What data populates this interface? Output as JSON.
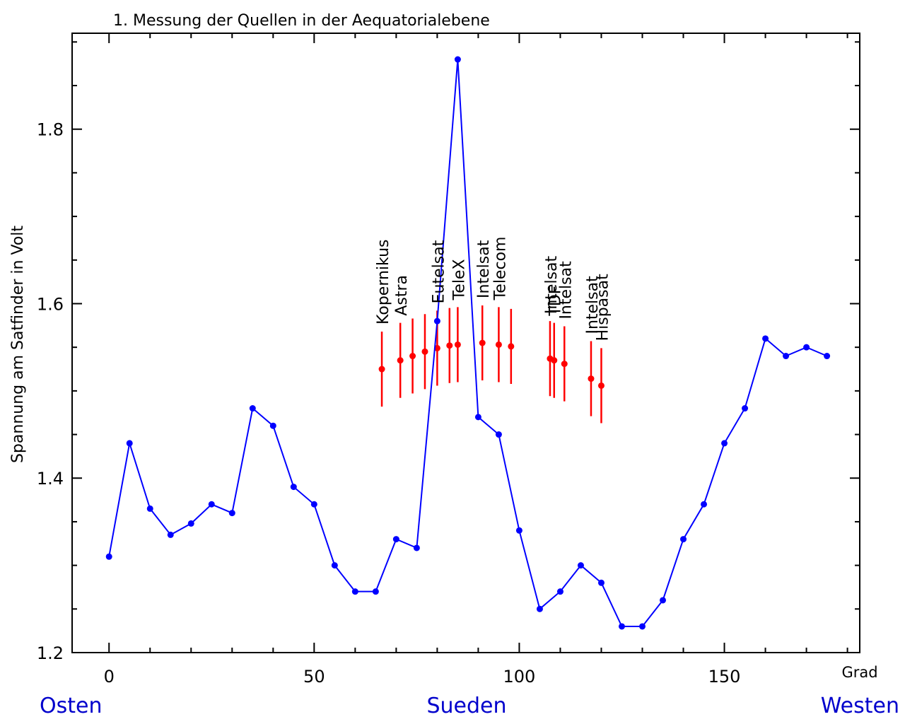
{
  "chart_data": {
    "type": "line",
    "title": "1. Messung der Quellen in der Aequatorialebene",
    "ylabel": "Spannung am Satfinder in Volt",
    "xunit": "Grad",
    "direction_labels": [
      "Osten",
      "Sueden",
      "Westen"
    ],
    "xlim": [
      -9,
      183
    ],
    "ylim": [
      1.2,
      1.91
    ],
    "xticks": [
      0,
      50,
      100,
      150
    ],
    "yticks": [
      1.2,
      1.4,
      1.6,
      1.8
    ],
    "grid": false,
    "colors": {
      "measurement": "#0000ff",
      "satellites": "#ff0000",
      "direction_labels": "#0000cc"
    },
    "series": [
      {
        "x": [
          0,
          5,
          10,
          15,
          20,
          25,
          30,
          35,
          40,
          45,
          50,
          55,
          60,
          65,
          70,
          75,
          80,
          85,
          90,
          95,
          100,
          105,
          110,
          115,
          120,
          125,
          130,
          135,
          140,
          145,
          150,
          155,
          160,
          165,
          170,
          175
        ],
        "y": [
          1.31,
          1.44,
          1.365,
          1.335,
          1.348,
          1.37,
          1.36,
          1.48,
          1.46,
          1.39,
          1.37,
          1.3,
          1.27,
          1.27,
          1.33,
          1.32,
          1.58,
          1.88,
          1.47,
          1.45,
          1.34,
          1.25,
          1.27,
          1.3,
          1.28,
          1.23,
          1.23,
          1.26,
          1.33,
          1.37,
          1.44,
          1.48,
          1.56,
          1.54,
          1.55,
          1.54
        ]
      }
    ],
    "satellites": [
      {
        "name": "Kopernikus",
        "x": 66.5,
        "y": 1.525,
        "err": 0.043
      },
      {
        "name": "Astra",
        "x": 71,
        "y": 1.535,
        "err": 0.043
      },
      {
        "name": "",
        "x": 74,
        "y": 1.54,
        "err": 0.043
      },
      {
        "name": "",
        "x": 77,
        "y": 1.545,
        "err": 0.043
      },
      {
        "name": "Eutelsat",
        "x": 80,
        "y": 1.549,
        "err": 0.043
      },
      {
        "name": "",
        "x": 83,
        "y": 1.552,
        "err": 0.043
      },
      {
        "name": "TeleX",
        "x": 85,
        "y": 1.553,
        "err": 0.043
      },
      {
        "name": "Intelsat",
        "x": 91,
        "y": 1.555,
        "err": 0.043
      },
      {
        "name": "Telecom",
        "x": 95,
        "y": 1.553,
        "err": 0.043
      },
      {
        "name": "",
        "x": 98,
        "y": 1.551,
        "err": 0.043
      },
      {
        "name": "Intelsat",
        "x": 107.5,
        "y": 1.537,
        "err": 0.043
      },
      {
        "name": "TDF",
        "x": 108.5,
        "y": 1.535,
        "err": 0.043
      },
      {
        "name": "Intelsat",
        "x": 111,
        "y": 1.531,
        "err": 0.043
      },
      {
        "name": "Intelsat",
        "x": 117.5,
        "y": 1.514,
        "err": 0.043
      },
      {
        "name": "Hispasat",
        "x": 120,
        "y": 1.506,
        "err": 0.043
      }
    ]
  }
}
